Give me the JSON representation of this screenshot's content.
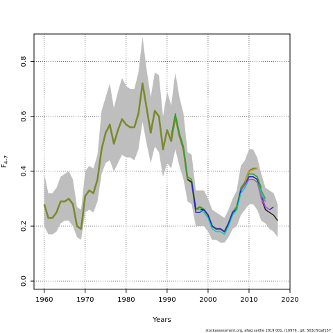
{
  "chart_data": {
    "type": "line",
    "title": "",
    "xlabel": "Years",
    "ylabel_main": "F",
    "ylabel_sub": "4–7",
    "xlim": [
      1957.5,
      2020
    ],
    "ylim": [
      -0.03,
      0.9
    ],
    "x_ticks": [
      1960,
      1970,
      1980,
      1990,
      2000,
      2010,
      2020
    ],
    "y_ticks": [
      0.0,
      0.2,
      0.4,
      0.6,
      0.8
    ],
    "grid": true,
    "band_color": "#bebebe",
    "confidence_band": {
      "x": [
        1960,
        1961,
        1962,
        1963,
        1964,
        1965,
        1966,
        1967,
        1968,
        1969,
        1970,
        1971,
        1972,
        1973,
        1974,
        1975,
        1976,
        1977,
        1978,
        1979,
        1980,
        1981,
        1982,
        1983,
        1984,
        1985,
        1986,
        1987,
        1988,
        1989,
        1990,
        1991,
        1992,
        1993,
        1994,
        1995,
        1996,
        1997,
        1998,
        1999,
        2000,
        2001,
        2002,
        2003,
        2004,
        2005,
        2006,
        2007,
        2008,
        2009,
        2010,
        2011,
        2012,
        2013,
        2014,
        2015,
        2016,
        2017
      ],
      "lower": [
        0.2,
        0.17,
        0.17,
        0.18,
        0.21,
        0.22,
        0.22,
        0.2,
        0.16,
        0.15,
        0.25,
        0.26,
        0.25,
        0.29,
        0.39,
        0.43,
        0.44,
        0.4,
        0.43,
        0.46,
        0.45,
        0.45,
        0.44,
        0.48,
        0.58,
        0.5,
        0.43,
        0.49,
        0.47,
        0.38,
        0.43,
        0.41,
        0.48,
        0.42,
        0.37,
        0.29,
        0.28,
        0.2,
        0.2,
        0.2,
        0.18,
        0.15,
        0.15,
        0.14,
        0.14,
        0.16,
        0.19,
        0.2,
        0.24,
        0.26,
        0.28,
        0.28,
        0.26,
        0.22,
        0.21,
        0.19,
        0.18,
        0.16
      ],
      "upper": [
        0.39,
        0.32,
        0.32,
        0.34,
        0.38,
        0.39,
        0.4,
        0.37,
        0.27,
        0.26,
        0.4,
        0.42,
        0.41,
        0.46,
        0.62,
        0.67,
        0.72,
        0.63,
        0.69,
        0.74,
        0.71,
        0.7,
        0.7,
        0.76,
        0.89,
        0.77,
        0.67,
        0.76,
        0.75,
        0.6,
        0.69,
        0.64,
        0.76,
        0.67,
        0.61,
        0.47,
        0.46,
        0.33,
        0.33,
        0.33,
        0.3,
        0.26,
        0.25,
        0.24,
        0.23,
        0.26,
        0.3,
        0.33,
        0.42,
        0.44,
        0.48,
        0.48,
        0.45,
        0.39,
        0.34,
        0.33,
        0.32,
        0.28
      ]
    },
    "series": [
      {
        "color": "#7a8a2a",
        "x": [
          1960,
          1961,
          1962,
          1963,
          1964,
          1965,
          1966,
          1967,
          1968,
          1969,
          1970,
          1971,
          1972,
          1973,
          1974,
          1975,
          1976,
          1977,
          1978,
          1979,
          1980,
          1981,
          1982,
          1983,
          1984,
          1985,
          1986,
          1987,
          1988,
          1989,
          1990,
          1991,
          1992,
          1993,
          1994,
          1995,
          1996,
          1997,
          1998,
          1999,
          2000,
          2001,
          2002,
          2003,
          2004,
          2005,
          2006,
          2007,
          2008,
          2009,
          2010,
          2011,
          2012
        ],
        "y": [
          0.28,
          0.23,
          0.23,
          0.25,
          0.29,
          0.29,
          0.3,
          0.28,
          0.2,
          0.19,
          0.31,
          0.33,
          0.32,
          0.37,
          0.48,
          0.54,
          0.57,
          0.5,
          0.55,
          0.59,
          0.57,
          0.56,
          0.56,
          0.61,
          0.72,
          0.63,
          0.54,
          0.62,
          0.6,
          0.48,
          0.55,
          0.51,
          0.6,
          0.53,
          0.48,
          0.37,
          0.36,
          0.26,
          0.27,
          0.26,
          0.24,
          0.2,
          0.19,
          0.19,
          0.18,
          0.21,
          0.25,
          0.27,
          0.33,
          0.36,
          0.4,
          0.41,
          0.41
        ]
      },
      {
        "color": "#2ea02e",
        "x": [
          1991,
          1992,
          1993,
          1994,
          1995,
          1996,
          1997,
          1998,
          1999,
          2000,
          2001,
          2002,
          2003,
          2004,
          2005,
          2006,
          2007,
          2008,
          2009,
          2010,
          2011,
          2012,
          2013
        ],
        "y": [
          0.53,
          0.61,
          0.54,
          0.49,
          0.38,
          0.37,
          0.26,
          0.27,
          0.26,
          0.24,
          0.2,
          0.19,
          0.19,
          0.18,
          0.21,
          0.25,
          0.27,
          0.34,
          0.36,
          0.39,
          0.39,
          0.38,
          0.34
        ]
      },
      {
        "color": "#1a1a1a",
        "x": [
          1995,
          1996,
          1997,
          1998,
          1999,
          2000,
          2001,
          2002,
          2003,
          2004,
          2005,
          2006,
          2007,
          2008,
          2009,
          2010,
          2011,
          2012,
          2013,
          2014,
          2015,
          2016,
          2017
        ],
        "y": [
          0.37,
          0.36,
          0.26,
          0.26,
          0.26,
          0.24,
          0.2,
          0.19,
          0.19,
          0.18,
          0.21,
          0.25,
          0.26,
          0.33,
          0.35,
          0.38,
          0.38,
          0.37,
          0.3,
          0.26,
          0.25,
          0.24,
          0.22
        ]
      },
      {
        "color": "#2828d8",
        "x": [
          1996,
          1997,
          1998,
          1999,
          2000,
          2001,
          2002,
          2003,
          2004,
          2005,
          2006,
          2007,
          2008,
          2009,
          2010,
          2011,
          2012,
          2013,
          2014,
          2015,
          2016
        ],
        "y": [
          0.36,
          0.25,
          0.25,
          0.26,
          0.24,
          0.2,
          0.19,
          0.19,
          0.18,
          0.21,
          0.25,
          0.26,
          0.33,
          0.35,
          0.38,
          0.38,
          0.37,
          0.31,
          0.27,
          0.26,
          0.27
        ]
      },
      {
        "color": "#00c8c8",
        "x": [
          1997,
          1998,
          1999,
          2000,
          2001,
          2002,
          2003,
          2004,
          2005,
          2006,
          2007,
          2008,
          2009,
          2010,
          2011,
          2012,
          2013,
          2014
        ],
        "y": [
          0.26,
          0.26,
          0.25,
          0.23,
          0.19,
          0.18,
          0.18,
          0.17,
          0.2,
          0.24,
          0.26,
          0.32,
          0.34,
          0.37,
          0.37,
          0.36,
          0.32,
          0.29
        ]
      },
      {
        "color": "#e040e0",
        "x": [
          2008,
          2009,
          2010,
          2011,
          2012,
          2013,
          2014,
          2015
        ],
        "y": [
          0.33,
          0.35,
          0.37,
          0.37,
          0.36,
          0.3,
          0.27,
          0.26
        ]
      },
      {
        "color": "#d4a020",
        "x": [
          2009,
          2010,
          2011,
          2012
        ],
        "y": [
          0.36,
          0.4,
          0.405,
          0.41
        ]
      },
      {
        "color": "#808080",
        "x": [
          2010,
          2011,
          2012,
          2013,
          2014
        ],
        "y": [
          0.37,
          0.37,
          0.36,
          0.31,
          0.29
        ]
      },
      {
        "color": "#30a030",
        "x": [
          2011,
          2012,
          2013,
          2014
        ],
        "y": [
          0.39,
          0.38,
          0.33,
          0.3
        ]
      }
    ]
  },
  "footer": {
    "text": "stockassessment.org, afwg saithe 2019 001, r10976 , git: 503cf91af157"
  }
}
